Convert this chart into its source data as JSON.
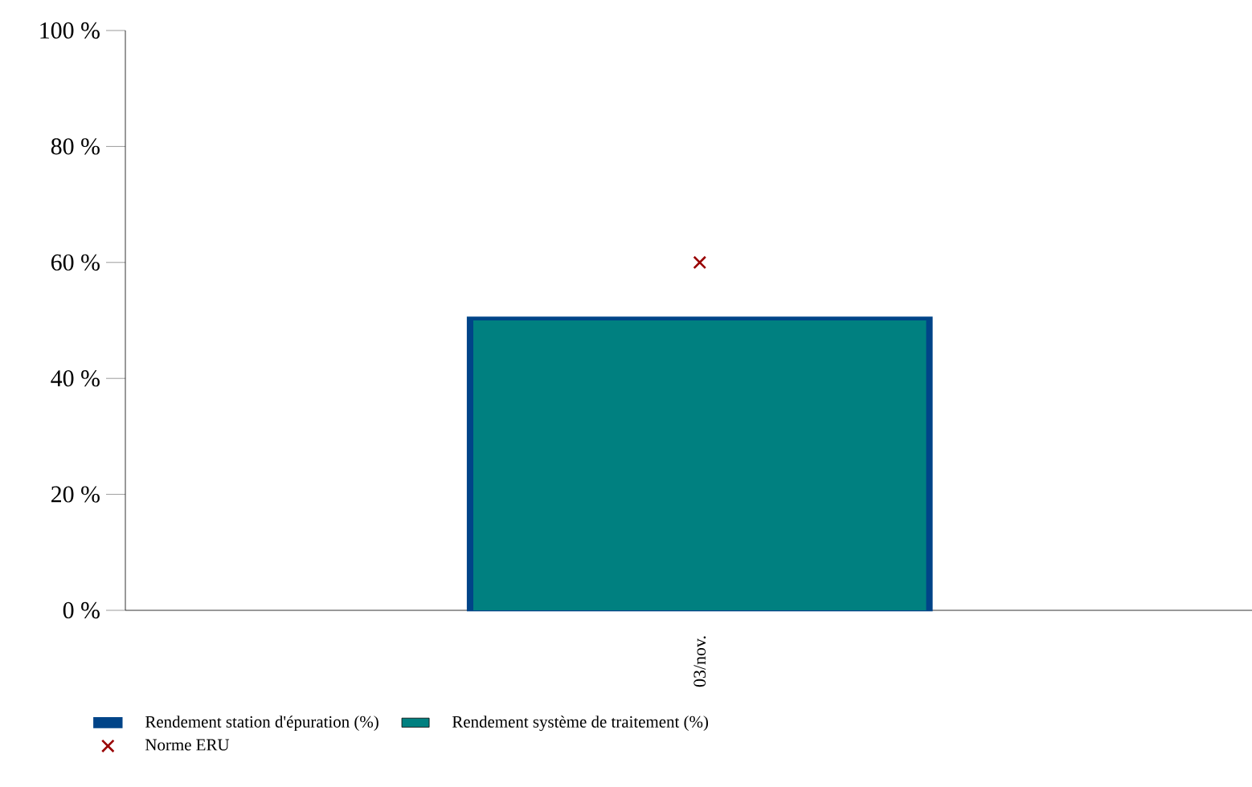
{
  "chart_data": {
    "type": "bar",
    "categories": [
      "03/nov."
    ],
    "series": [
      {
        "name": "Rendement station d'épuration (%)",
        "color": "#004488",
        "values": [
          50.5
        ]
      },
      {
        "name": "Rendement système de traitement (%)",
        "color": "#008080",
        "values": [
          50
        ]
      },
      {
        "name": "Norme ERU",
        "type": "scatter",
        "color": "#990000",
        "marker": "cross",
        "values": [
          60
        ]
      }
    ],
    "ylim": [
      0,
      100
    ],
    "yticks": [
      {
        "value": 0,
        "label": "0 %"
      },
      {
        "value": 20,
        "label": "20 %"
      },
      {
        "value": 40,
        "label": "40 %"
      },
      {
        "value": 60,
        "label": "60 %"
      },
      {
        "value": 80,
        "label": "80 %"
      },
      {
        "value": 100,
        "label": "100 %"
      }
    ],
    "legend": "bottom",
    "grid": false
  }
}
